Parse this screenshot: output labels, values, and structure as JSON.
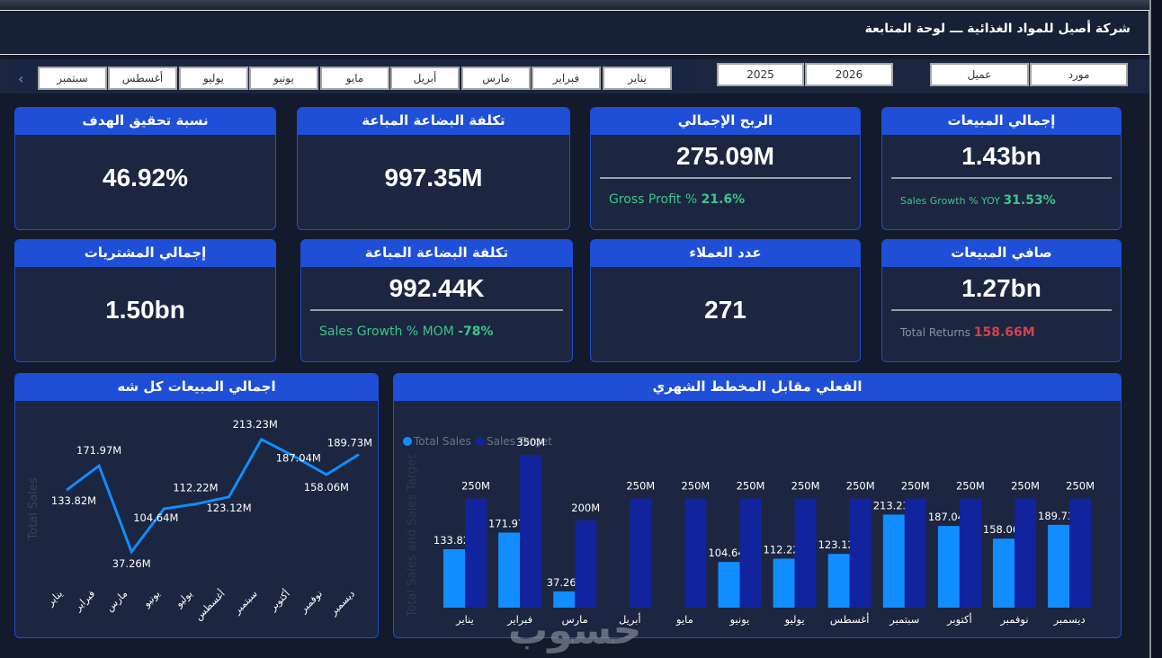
{
  "header": {
    "title": "شركة أصيل للمواد الغذائية ـــ لوحة المتابعة"
  },
  "slicers": {
    "months": [
      "يناير",
      "فبراير",
      "مارس",
      "أبريل",
      "مايو",
      "يونيو",
      "يوليو",
      "أغسطس",
      "سبتمبر"
    ],
    "years": [
      "2026",
      "2025"
    ],
    "party": [
      "مورد",
      "عميل"
    ],
    "scroll_icon": "chevron-left-icon"
  },
  "cards": {
    "total_sales": {
      "title": "إجمالي المبيعات",
      "value": "1.43bn",
      "sub_label": "Sales Growth % YOY",
      "sub_value": "31.53%"
    },
    "gross_profit": {
      "title": "الربح الإجمالي",
      "value": "275.09M",
      "sub_label": "Gross Profit %",
      "sub_value": "21.6%"
    },
    "cogs": {
      "title": "تكلفة البضاعة المباعة",
      "value": "997.35M"
    },
    "target_pct": {
      "title": "نسبة تحقيق الهدف",
      "value": "46.92%"
    },
    "net_sales": {
      "title": "صافي المبيعات",
      "value": "1.27bn",
      "sub_label": "Total Returns",
      "sub_value": "158.66M"
    },
    "customers": {
      "title": "عدد العملاء",
      "value": "271"
    },
    "cogs_mom": {
      "title": "تكلفة البضاعة المباعة",
      "value": "992.44K",
      "sub_label": "Sales Growth % MOM",
      "sub_value": "-78%"
    },
    "purchases": {
      "title": "إجمالي المشتريات",
      "value": "1.50bn"
    }
  },
  "watermark": "حسوب",
  "chart_data": [
    {
      "type": "line",
      "title": "اجمالي المبيعات كل شه",
      "ylabel": "Total Sales",
      "xlabel": "",
      "categories": [
        "يناير",
        "فبراير",
        "مارس",
        "يونيو",
        "يوليو",
        "أغسطس",
        "سبتمبر",
        "أكتوبر",
        "نوفمبر",
        "ديسمبر"
      ],
      "values": [
        133.82,
        171.97,
        37.26,
        104.64,
        112.22,
        123.12,
        213.23,
        187.04,
        158.06,
        189.73
      ],
      "labels": [
        "133.82M",
        "171.97M",
        "37.26M",
        "104.64M",
        "112.22M",
        "123.12M",
        "213.23M",
        "187.04M",
        "158.06M",
        "189.73M"
      ],
      "unit": "M",
      "color": "#118dff",
      "grid": false
    },
    {
      "type": "bar",
      "title": "الفعلي مقابل المخطط الشهري",
      "ylabel": "Total Sales and Sales Target",
      "xlabel": "",
      "legend_position": "top-left",
      "categories": [
        "يناير",
        "فبراير",
        "مارس",
        "أبريل",
        "مايو",
        "يونيو",
        "يوليو",
        "أغسطس",
        "سبتمبر",
        "أكتوبر",
        "نوفمبر",
        "ديسمبر"
      ],
      "series": [
        {
          "name": "Total Sales",
          "color": "#118dff",
          "values": [
            133.82,
            171.97,
            37.26,
            null,
            null,
            104.64,
            112.22,
            123.12,
            213.23,
            187.04,
            158.06,
            189.73
          ],
          "labels": [
            "133.82M",
            "171.97M",
            "37.26M",
            "",
            "",
            "104.64M",
            "112.22M",
            "123.12M",
            "213.23M",
            "187.04M",
            "158.06M",
            "189.73M"
          ]
        },
        {
          "name": "Sales Target",
          "color": "#12239e",
          "values": [
            250,
            350,
            200,
            250,
            250,
            250,
            250,
            250,
            250,
            250,
            250,
            250
          ],
          "labels": [
            "250M",
            "350M",
            "200M",
            "250M",
            "250M",
            "250M",
            "250M",
            "250M",
            "250M",
            "250M",
            "250M",
            "250M"
          ]
        }
      ],
      "ylim": [
        0,
        350
      ],
      "unit": "M",
      "grid": false
    }
  ]
}
